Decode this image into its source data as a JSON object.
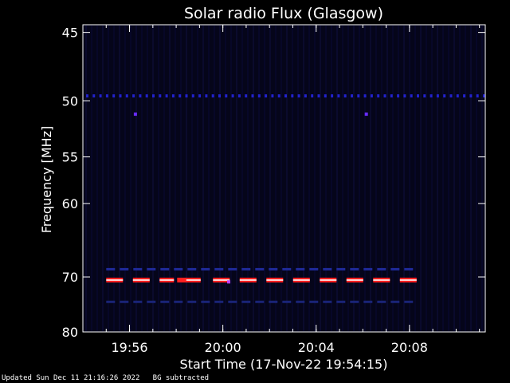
{
  "chart_data": {
    "type": "heatmap",
    "title": "Solar radio Flux (Glasgow)",
    "xlabel": "Start Time (17-Nov-22 19:54:15)",
    "ylabel": "Frequency [MHz]",
    "x_range_min": [
      -0.25,
      17.0
    ],
    "x_tick_labels": [
      "19:56",
      "20:00",
      "20:04",
      "20:08"
    ],
    "x_tick_values_min": [
      1.75,
      5.75,
      9.75,
      13.75
    ],
    "y_ticks_mhz": [
      45,
      50,
      55,
      60,
      70,
      80
    ],
    "y_scale": "reciprocal",
    "y_range_mhz": [
      44.5,
      80
    ],
    "colors": {
      "background": "#000000",
      "plot_background": "#05051a",
      "frame": "#ffffff",
      "band_50": "#2222cc",
      "band_69": "#1f2a9a",
      "band_70": "#ff2020",
      "band_70_core": "#ffd0d0",
      "band_74": "#1a2477"
    },
    "bands": [
      {
        "name": "50 MHz dotted",
        "freq_mhz": 49.6,
        "style": "dots",
        "x_start_min": -0.25,
        "x_end_min": 17.0
      },
      {
        "name": "69 MHz dashed",
        "freq_mhz": 68.8,
        "style": "dash_dim",
        "x_start_min": 0.75,
        "x_end_min": 14.0
      },
      {
        "name": "70.5 MHz strong",
        "freq_mhz": 70.5,
        "style": "dash_red",
        "x_start_min": 0.75,
        "x_end_min": 14.0
      },
      {
        "name": "74 MHz dashed",
        "freq_mhz": 74.2,
        "style": "dash_faint",
        "x_start_min": 0.75,
        "x_end_min": 14.0
      }
    ],
    "dots": [
      {
        "time_min": 2.0,
        "freq_mhz": 51.1,
        "color": "#6a2cff"
      },
      {
        "time_min": 11.9,
        "freq_mhz": 51.1,
        "color": "#6a2cff"
      },
      {
        "time_min": 6.0,
        "freq_mhz": 70.8,
        "color": "#c040ff"
      }
    ]
  },
  "footer": {
    "updated": "Updated Sun Dec 11 21:16:26 2022",
    "note": "BG subtracted"
  }
}
